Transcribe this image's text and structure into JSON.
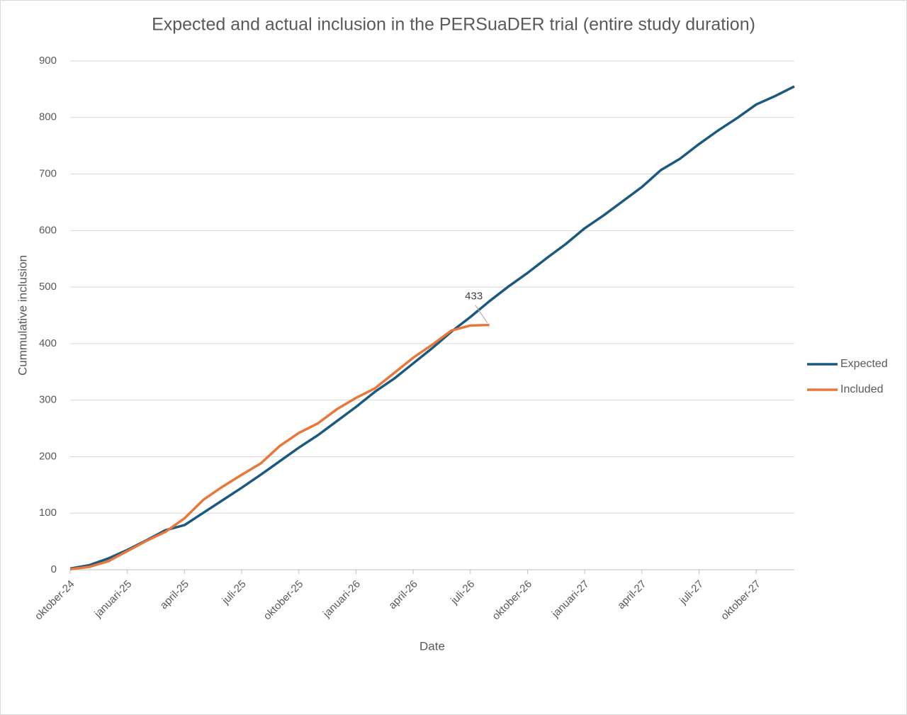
{
  "chart_data": {
    "type": "line",
    "title": "Expected and actual inclusion in the PERSuaDER trial (entire study duration)",
    "x_label": "Date",
    "y_label": "Cummulative inclusion",
    "categories": [
      "oktober-24",
      null,
      null,
      "januari-25",
      null,
      null,
      "april-25",
      null,
      null,
      "juli-25",
      null,
      null,
      "oktober-25",
      null,
      null,
      "januari-26",
      null,
      null,
      "april-26",
      null,
      null,
      "juli-26",
      null,
      null,
      "oktober-26",
      null,
      null,
      "januari-27",
      null,
      null,
      "april-27",
      null,
      null,
      "juli-27",
      null,
      null,
      "oktober-27",
      null,
      null
    ],
    "series": [
      {
        "name": "Expected",
        "color": "#1b5a7e",
        "values": [
          2,
          8,
          20,
          35,
          52,
          70,
          79,
          101,
          123,
          145,
          168,
          192,
          216,
          238,
          263,
          288,
          315,
          338,
          365,
          392,
          421,
          447,
          475,
          501,
          525,
          551,
          576,
          604,
          627,
          652,
          677,
          707,
          727,
          753,
          777,
          799,
          823,
          838,
          855
        ]
      },
      {
        "name": "Included",
        "color": "#e8773a",
        "values": [
          1,
          5,
          15,
          33,
          51,
          67,
          91,
          124,
          147,
          168,
          188,
          219,
          242,
          259,
          284,
          304,
          321,
          348,
          375,
          398,
          423,
          432,
          433,
          null,
          null,
          null,
          null,
          null,
          null,
          null,
          null,
          null,
          null,
          null,
          null,
          null,
          null,
          null,
          null
        ]
      }
    ],
    "ylim": [
      0,
      900
    ],
    "yticks": [
      0,
      100,
      200,
      300,
      400,
      500,
      600,
      700,
      800,
      900
    ],
    "grid": true,
    "legend": "right"
  }
}
